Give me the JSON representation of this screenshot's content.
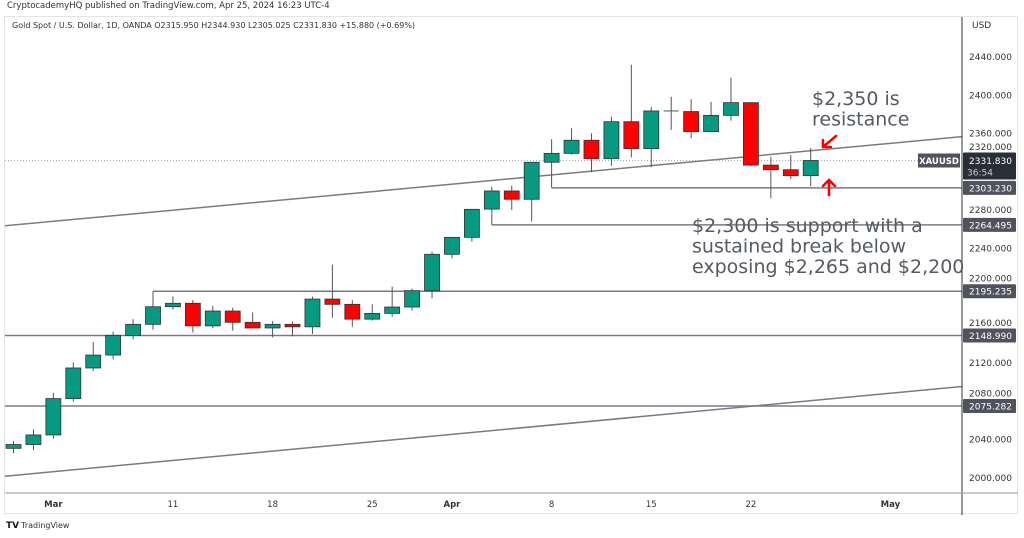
{
  "header": {
    "published": "CryptocademyHQ published on TradingView.com, Apr 25, 2024 16:23 UTC-4",
    "legend": "Gold Spot / U.S. Dollar, 1D, OANDA  O2315.950  H2344.930  L2305.025  C2331.830  +15.880 (+0.69%)"
  },
  "footer": {
    "logo_text": "TradingView"
  },
  "chart_data": {
    "type": "candlestick",
    "symbol": "XAUUSD",
    "currency": "USD",
    "ylim": [
      2000,
      2440
    ],
    "y_ticks": [
      2000,
      2040,
      2080,
      2120,
      2160,
      2200,
      2240,
      2280,
      2320,
      2360,
      2400,
      2440
    ],
    "y_tick_labels": [
      "2000.000",
      "2040.000",
      "2080.000",
      "2120.000",
      "2160.000",
      "2200.000",
      "2240.000",
      "2280.000",
      "2320.000",
      "2360.000",
      "2400.000",
      "2440.000"
    ],
    "x_ticks": [
      {
        "label": "Mar",
        "date": "2024-03-01",
        "bold": true
      },
      {
        "label": "11",
        "date": "2024-03-11"
      },
      {
        "label": "18",
        "date": "2024-03-18"
      },
      {
        "label": "25",
        "date": "2024-03-25"
      },
      {
        "label": "Apr",
        "date": "2024-04-01",
        "bold": true
      },
      {
        "label": "8",
        "date": "2024-04-08"
      },
      {
        "label": "15",
        "date": "2024-04-15"
      },
      {
        "label": "22",
        "date": "2024-04-22"
      },
      {
        "label": "May",
        "date": "2024-05-01",
        "bold": true
      }
    ],
    "candles": [
      {
        "date": "2024-02-28",
        "o": 2031,
        "h": 2038.7,
        "l": 2026,
        "c": 2035
      },
      {
        "date": "2024-02-29",
        "o": 2035,
        "h": 2051,
        "l": 2029,
        "c": 2045
      },
      {
        "date": "2024-03-01",
        "o": 2045,
        "h": 2089,
        "l": 2041,
        "c": 2083
      },
      {
        "date": "2024-03-04",
        "o": 2083,
        "h": 2121,
        "l": 2080,
        "c": 2115
      },
      {
        "date": "2024-03-05",
        "o": 2115,
        "h": 2142,
        "l": 2112,
        "c": 2128.5
      },
      {
        "date": "2024-03-06",
        "o": 2128.5,
        "h": 2153,
        "l": 2124,
        "c": 2149
      },
      {
        "date": "2024-03-07",
        "o": 2149,
        "h": 2166,
        "l": 2145,
        "c": 2160.6
      },
      {
        "date": "2024-03-08",
        "o": 2160.6,
        "h": 2195.2,
        "l": 2155,
        "c": 2179
      },
      {
        "date": "2024-03-11",
        "o": 2179,
        "h": 2190,
        "l": 2176,
        "c": 2182.6
      },
      {
        "date": "2024-03-12",
        "o": 2182.6,
        "h": 2186,
        "l": 2152,
        "c": 2159
      },
      {
        "date": "2024-03-13",
        "o": 2159,
        "h": 2180,
        "l": 2156.5,
        "c": 2174.5
      },
      {
        "date": "2024-03-14",
        "o": 2174.5,
        "h": 2178,
        "l": 2154,
        "c": 2162.7
      },
      {
        "date": "2024-03-15",
        "o": 2162.7,
        "h": 2173,
        "l": 2156.5,
        "c": 2156.8
      },
      {
        "date": "2024-03-18",
        "o": 2156.8,
        "h": 2164,
        "l": 2147,
        "c": 2160.6
      },
      {
        "date": "2024-03-19",
        "o": 2160.6,
        "h": 2163.5,
        "l": 2148,
        "c": 2158
      },
      {
        "date": "2024-03-20",
        "o": 2158,
        "h": 2189.5,
        "l": 2150.5,
        "c": 2187
      },
      {
        "date": "2024-03-21",
        "o": 2187,
        "h": 2223,
        "l": 2167.5,
        "c": 2181.5
      },
      {
        "date": "2024-03-22",
        "o": 2181.5,
        "h": 2186,
        "l": 2158,
        "c": 2166
      },
      {
        "date": "2024-03-25",
        "o": 2166,
        "h": 2181.5,
        "l": 2164.5,
        "c": 2172
      },
      {
        "date": "2024-03-26",
        "o": 2172,
        "h": 2200,
        "l": 2168.5,
        "c": 2178.7
      },
      {
        "date": "2024-03-27",
        "o": 2178.7,
        "h": 2198,
        "l": 2175,
        "c": 2195.8
      },
      {
        "date": "2024-03-28",
        "o": 2195.8,
        "h": 2236.5,
        "l": 2187.8,
        "c": 2233.8
      },
      {
        "date": "2024-04-01",
        "o": 2233.8,
        "h": 2251.5,
        "l": 2229.6,
        "c": 2251.5
      },
      {
        "date": "2024-04-02",
        "o": 2251.5,
        "h": 2281,
        "l": 2247,
        "c": 2280.8
      },
      {
        "date": "2024-04-03",
        "o": 2281,
        "h": 2304.5,
        "l": 2264.5,
        "c": 2300
      },
      {
        "date": "2024-04-04",
        "o": 2300,
        "h": 2305.5,
        "l": 2280,
        "c": 2291.3
      },
      {
        "date": "2024-04-05",
        "o": 2291.3,
        "h": 2330,
        "l": 2268,
        "c": 2330
      },
      {
        "date": "2024-04-08",
        "o": 2330,
        "h": 2354,
        "l": 2303.2,
        "c": 2339.3
      },
      {
        "date": "2024-04-09",
        "o": 2339.3,
        "h": 2365.5,
        "l": 2338,
        "c": 2353
      },
      {
        "date": "2024-04-10",
        "o": 2353,
        "h": 2360.3,
        "l": 2319.5,
        "c": 2333.7
      },
      {
        "date": "2024-04-11",
        "o": 2333.7,
        "h": 2377.6,
        "l": 2326.4,
        "c": 2372.4
      },
      {
        "date": "2024-04-12",
        "o": 2372.4,
        "h": 2432,
        "l": 2335,
        "c": 2344.2
      },
      {
        "date": "2024-04-15",
        "o": 2344.2,
        "h": 2388,
        "l": 2324.7,
        "c": 2383.6
      },
      {
        "date": "2024-04-16",
        "o": 2383.6,
        "h": 2398.5,
        "l": 2363.7,
        "c": 2383
      },
      {
        "date": "2024-04-17",
        "o": 2383,
        "h": 2396,
        "l": 2355,
        "c": 2362
      },
      {
        "date": "2024-04-18",
        "o": 2362,
        "h": 2393,
        "l": 2362,
        "c": 2379
      },
      {
        "date": "2024-04-19",
        "o": 2379,
        "h": 2418.4,
        "l": 2373.4,
        "c": 2392.3
      },
      {
        "date": "2024-04-22",
        "o": 2392.3,
        "h": 2392.3,
        "l": 2326,
        "c": 2327
      },
      {
        "date": "2024-04-23",
        "o": 2327,
        "h": 2335.8,
        "l": 2292.3,
        "c": 2322.2
      },
      {
        "date": "2024-04-24",
        "o": 2322.2,
        "h": 2337.6,
        "l": 2312.5,
        "c": 2316
      },
      {
        "date": "2024-04-25",
        "o": 2315.95,
        "h": 2344.93,
        "l": 2305.025,
        "c": 2331.83
      }
    ],
    "colors": {
      "up": "#089981",
      "down": "#ff0000",
      "line": "#787b86",
      "annotation": "#555a63",
      "arrow": "#ff0000"
    },
    "trendlines": [
      {
        "p1": {
          "date": "2024-02-28",
          "price": 2264.4
        },
        "p2": {
          "date": "2024-04-25",
          "price": 2342
        }
      },
      {
        "p1": {
          "date": "2024-02-28",
          "price": 2002.7
        },
        "p2": {
          "date": "2024-04-25",
          "price": 2080.8
        }
      }
    ],
    "levels": [
      {
        "price": 2303.23,
        "label": "2303.230",
        "from": "2024-04-08"
      },
      {
        "price": 2264.495,
        "label": "2264.495",
        "from": "2024-04-03"
      },
      {
        "price": 2195.235,
        "label": "2195.235",
        "from": "2024-03-08"
      },
      {
        "price": 2148.99,
        "label": "2148.990",
        "from": null
      },
      {
        "price": 2075.282,
        "label": "2075.282",
        "from": null
      }
    ],
    "last_price": {
      "price": 2331.83,
      "label": "2331.830",
      "countdown": "36:54",
      "symbol_tag": "XAUUSD"
    },
    "annotations": [
      {
        "lines": [
          "$2,350 is",
          "resistance"
        ]
      },
      {
        "lines": [
          "$2,300 is support with a",
          "sustained break below",
          "exposing $2,265 and $2,200"
        ]
      }
    ]
  }
}
